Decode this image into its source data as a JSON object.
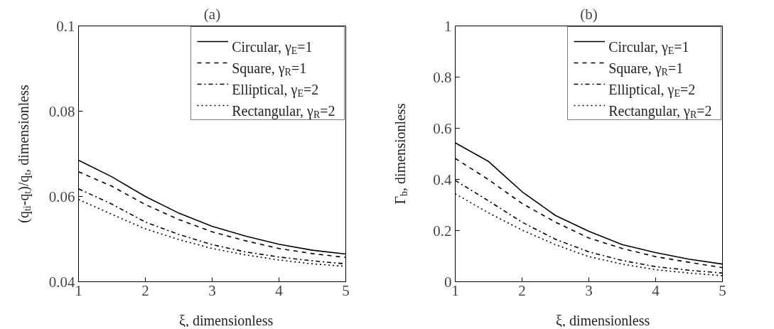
{
  "chart_data": [
    {
      "type": "line",
      "title": "(a)",
      "xlabel": "ξ, dimensionless",
      "ylabel": "(q$_{ti}$-q$_{t}$)/q$_{t}$, dimensionless",
      "x": [
        1,
        1.5,
        2,
        2.5,
        3,
        3.5,
        4,
        4.5,
        5
      ],
      "series": [
        {
          "name": "Circular, γ$_{E}$=1",
          "color": "#000000",
          "line_style": "solid",
          "values": [
            0.0685,
            0.0646,
            0.06,
            0.0561,
            0.053,
            0.0507,
            0.0488,
            0.0474,
            0.0465
          ]
        },
        {
          "name": "Square, γ$_{R}$=1",
          "color": "#000000",
          "line_style": "dashed",
          "values": [
            0.0658,
            0.0624,
            0.0581,
            0.0546,
            0.0517,
            0.0496,
            0.0478,
            0.0466,
            0.0457
          ]
        },
        {
          "name": "Elliptical, γ$_{E}$=2",
          "color": "#000000",
          "line_style": "dashdot",
          "values": [
            0.0618,
            0.0582,
            0.054,
            0.0511,
            0.0487,
            0.047,
            0.0458,
            0.0449,
            0.0442
          ]
        },
        {
          "name": "Rectangular, γ$_{R}$=2",
          "color": "#000000",
          "line_style": "dotted",
          "values": [
            0.0593,
            0.0558,
            0.0524,
            0.0499,
            0.0478,
            0.0463,
            0.0451,
            0.0442,
            0.0436
          ]
        }
      ],
      "xlim": [
        1,
        5
      ],
      "xticks": [
        1,
        2,
        3,
        4,
        5
      ],
      "ylim": [
        0.04,
        0.1
      ],
      "yticks": [
        0.04,
        0.06,
        0.08,
        0.1
      ],
      "legend": "top right"
    },
    {
      "type": "line",
      "title": "(b)",
      "xlabel": "ξ, dimensionless",
      "ylabel": "Γ$_{b}$, dimensionless",
      "x": [
        1,
        1.5,
        2,
        2.5,
        3,
        3.5,
        4,
        4.5,
        5
      ],
      "series": [
        {
          "name": "Circular, γ$_{E}$=1",
          "color": "#000000",
          "line_style": "solid",
          "values": [
            0.543,
            0.47,
            0.352,
            0.259,
            0.197,
            0.145,
            0.114,
            0.088,
            0.069
          ]
        },
        {
          "name": "Square, γ$_{R}$=1",
          "color": "#000000",
          "line_style": "dashed",
          "values": [
            0.482,
            0.399,
            0.306,
            0.233,
            0.171,
            0.13,
            0.098,
            0.076,
            0.055
          ]
        },
        {
          "name": "Elliptical, γ$_{E}$=2",
          "color": "#000000",
          "line_style": "dashdot",
          "values": [
            0.396,
            0.316,
            0.233,
            0.166,
            0.117,
            0.083,
            0.059,
            0.045,
            0.034
          ]
        },
        {
          "name": "Rectangular, γ$_{R}$=2",
          "color": "#000000",
          "line_style": "dotted",
          "values": [
            0.344,
            0.269,
            0.202,
            0.145,
            0.098,
            0.069,
            0.047,
            0.034,
            0.024
          ]
        }
      ],
      "xlim": [
        1,
        5
      ],
      "xticks": [
        1,
        2,
        3,
        4,
        5
      ],
      "ylim": [
        0,
        1
      ],
      "yticks": [
        0,
        0.2,
        0.4,
        0.6,
        0.8,
        1
      ],
      "legend": "top right"
    }
  ]
}
